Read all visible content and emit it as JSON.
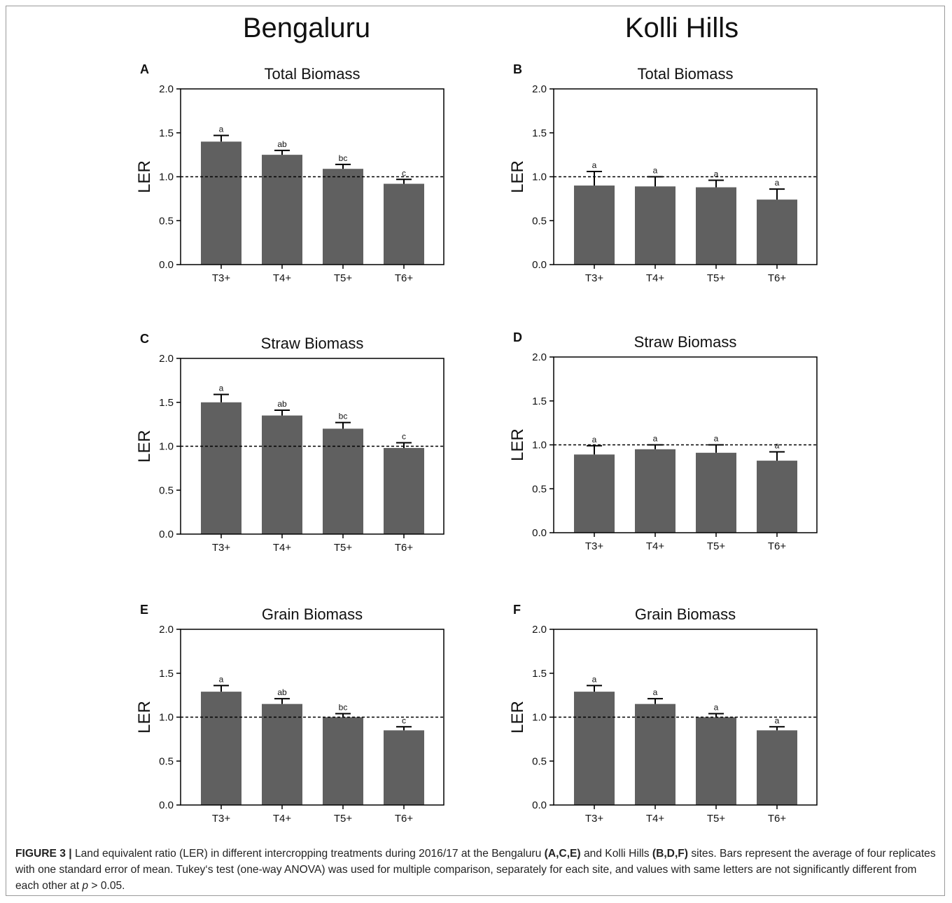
{
  "column_titles": [
    "Bengaluru",
    "Kolli Hills"
  ],
  "caption": {
    "fig_label": "FIGURE 3 |",
    "t1": " Land equivalent ratio (LER) in different intercropping treatments during 2016/17 at the Bengaluru ",
    "refs1": "(A,C,E)",
    "t2": " and Kolli Hills ",
    "refs2": "(B,D,F)",
    "t3": " sites. Bars represent the average of four replicates with one standard error of mean. Tukey‘s test (one-way ANOVA) was used for multiple comparison, separately for each site, and values with same letters are not significantly different from each other at ",
    "pvar": "p",
    "t4": " > 0.05."
  },
  "colors": {
    "bar": "#606060",
    "axis": "#000000"
  },
  "chart_data": [
    {
      "panel": "A",
      "title": "Total Biomass",
      "type": "bar",
      "ylabel": "LER",
      "ylim": [
        0,
        2.0
      ],
      "yticks": [
        "0.0",
        "0.5",
        "1.0",
        "1.5",
        "2.0"
      ],
      "reference_line": 1.0,
      "categories": [
        "T3+",
        "T4+",
        "T5+",
        "T6+"
      ],
      "values": [
        1.4,
        1.25,
        1.09,
        0.92
      ],
      "errors": [
        0.07,
        0.05,
        0.05,
        0.05
      ],
      "letters": [
        "a",
        "ab",
        "bc",
        "c"
      ]
    },
    {
      "panel": "B",
      "title": "Total Biomass",
      "type": "bar",
      "ylabel": "LER",
      "ylim": [
        0,
        2.0
      ],
      "yticks": [
        "0.0",
        "0.5",
        "1.0",
        "1.5",
        "2.0"
      ],
      "reference_line": 1.0,
      "categories": [
        "T3+",
        "T4+",
        "T5+",
        "T6+"
      ],
      "values": [
        0.9,
        0.89,
        0.88,
        0.74
      ],
      "errors": [
        0.16,
        0.11,
        0.08,
        0.12
      ],
      "letters": [
        "a",
        "a",
        "a",
        "a"
      ]
    },
    {
      "panel": "C",
      "title": "Straw Biomass",
      "type": "bar",
      "ylabel": "LER",
      "ylim": [
        0,
        2.0
      ],
      "yticks": [
        "0.0",
        "0.5",
        "1.0",
        "1.5",
        "2.0"
      ],
      "reference_line": 1.0,
      "categories": [
        "T3+",
        "T4+",
        "T5+",
        "T6+"
      ],
      "values": [
        1.5,
        1.35,
        1.2,
        0.98
      ],
      "errors": [
        0.09,
        0.06,
        0.07,
        0.06
      ],
      "letters": [
        "a",
        "ab",
        "bc",
        "c"
      ]
    },
    {
      "panel": "D",
      "title": "Straw Biomass",
      "type": "bar",
      "ylabel": "LER",
      "ylim": [
        0,
        2.0
      ],
      "yticks": [
        "0.0",
        "0.5",
        "1.0",
        "1.5",
        "2.0"
      ],
      "reference_line": 1.0,
      "categories": [
        "T3+",
        "T4+",
        "T5+",
        "T6+"
      ],
      "values": [
        0.89,
        0.95,
        0.91,
        0.82
      ],
      "errors": [
        0.1,
        0.05,
        0.09,
        0.1
      ],
      "letters": [
        "a",
        "a",
        "a",
        "a"
      ]
    },
    {
      "panel": "E",
      "title": "Grain Biomass",
      "type": "bar",
      "ylabel": "LER",
      "ylim": [
        0,
        2.0
      ],
      "yticks": [
        "0.0",
        "0.5",
        "1.0",
        "1.5",
        "2.0"
      ],
      "reference_line": 1.0,
      "categories": [
        "T3+",
        "T4+",
        "T5+",
        "T6+"
      ],
      "values": [
        1.29,
        1.15,
        1.0,
        0.85
      ],
      "errors": [
        0.07,
        0.06,
        0.04,
        0.04
      ],
      "letters": [
        "a",
        "ab",
        "bc",
        "c"
      ]
    },
    {
      "panel": "F",
      "title": "Grain Biomass",
      "type": "bar",
      "ylabel": "LER",
      "ylim": [
        0,
        2.0
      ],
      "yticks": [
        "0.0",
        "0.5",
        "1.0",
        "1.5",
        "2.0"
      ],
      "reference_line": 1.0,
      "categories": [
        "T3+",
        "T4+",
        "T5+",
        "T6+"
      ],
      "values": [
        1.29,
        1.15,
        1.0,
        0.85
      ],
      "errors": [
        0.07,
        0.06,
        0.04,
        0.04
      ],
      "letters": [
        "a",
        "a",
        "a",
        "a"
      ]
    }
  ]
}
